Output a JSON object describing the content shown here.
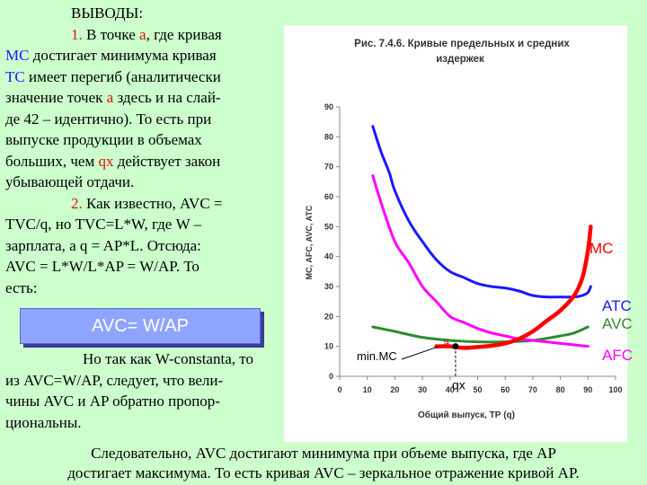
{
  "left_text": {
    "heading": "ВЫВОДЫ:",
    "p1_num": "1.",
    "p1_a": " В точке ",
    "p1_point": "а",
    "p1_b": ", где кривая",
    "p1_mc": "МС",
    "p1_c": " достигает минимума кривая",
    "p1_tc": "ТС",
    "p1_d": " имеет перегиб (аналитически",
    "p1_e": "значение точек ",
    "p1_point2": "а",
    "p1_f": " здесь и на слай-",
    "p1_g": "де 42 – идентично). То есть при",
    "p1_h": "выпуске продукции в объемах",
    "p1_i": "больших, чем ",
    "p1_q": "qx",
    "p1_j": " действует закон",
    "p1_k": "убывающей отдачи.",
    "p2_num": "2.",
    "p2_a": " Как известно, AVC =",
    "p2_b": "TVC/q, но TVC=L*W, где W –",
    "p2_c": "зарплата, а q = AP*L. Отсюда:",
    "p2_d": "AVC = L*W/L*AP = W/AP. То",
    "p2_e": "есть:"
  },
  "formula": "AVC= W/AP",
  "lower_text": {
    "l1": "Но так как W-constanta, то",
    "l2": "из AVC=W/AP, следует, что вели-",
    "l3": "чины AVC и AP обратно пропор-",
    "l4": "циональны."
  },
  "bottom_text": {
    "l1": "Следовательно, AVC достигают минимума при объеме выпуска, где AP",
    "l2": "достигает максимума. То есть кривая AVC – зеркальное отражение кривой AP."
  },
  "chart_data": {
    "type": "line",
    "title_line1": "Рис. 7.4.6. Кривые предельных и средних",
    "title_line2": "издержек",
    "xlabel": "Общий выпуск, ТР (q)",
    "ylabel": "MC, AFC, AVC, ATC",
    "xlim": [
      0,
      100
    ],
    "ylim": [
      0,
      90
    ],
    "xticks": [
      "0",
      "10",
      "20",
      "30",
      "40",
      "50",
      "60",
      "70",
      "80",
      "90",
      "100"
    ],
    "yticks": [
      "0",
      "10",
      "20",
      "30",
      "40",
      "50",
      "60",
      "70",
      "80",
      "90"
    ],
    "grid": false,
    "series": [
      {
        "name": "ATC",
        "color": "#1a1aff",
        "x": [
          12,
          15,
          18,
          20,
          25,
          30,
          35,
          40,
          45,
          50,
          55,
          60,
          65,
          70,
          75,
          80,
          85,
          88,
          90,
          91
        ],
        "y": [
          83.5,
          75,
          68,
          62,
          52,
          45,
          39,
          35,
          33,
          31,
          30,
          29.5,
          28.5,
          27,
          26.5,
          26.5,
          26.5,
          27,
          28,
          30
        ]
      },
      {
        "name": "AVC",
        "color": "#2e8b2e",
        "x": [
          12,
          20,
          30,
          40,
          50,
          60,
          70,
          80,
          85,
          90
        ],
        "y": [
          16.5,
          15,
          13,
          12,
          11.5,
          11.5,
          12,
          13.5,
          14.5,
          16.5
        ]
      },
      {
        "name": "AFC",
        "color": "#ff00ff",
        "x": [
          12,
          15,
          20,
          25,
          30,
          35,
          40,
          45,
          50,
          55,
          60,
          65,
          70,
          75,
          80,
          85,
          90
        ],
        "y": [
          67,
          58,
          45,
          38,
          30,
          25,
          20,
          18,
          16,
          14.5,
          13.5,
          12.5,
          12,
          11.5,
          11,
          10.5,
          10
        ]
      },
      {
        "name": "MC",
        "color": "#ff0000",
        "x": [
          35,
          40,
          45,
          50,
          55,
          60,
          65,
          70,
          75,
          80,
          85,
          88,
          90,
          91
        ],
        "y": [
          10,
          10,
          9.5,
          9.8,
          10.2,
          11,
          12.5,
          15,
          18.5,
          22,
          27,
          33,
          42,
          50
        ]
      }
    ],
    "annotations": {
      "mc_label": "MC",
      "atc_label": "ATC",
      "avc_label": "AVC",
      "afc_label": "AFC",
      "minmc_label": "min.MC",
      "point_label": "a",
      "qx_label": "qx",
      "point_x": 42,
      "point_y": 10
    }
  },
  "colors": {
    "background": "#ccffcc",
    "accent_red": "#e01010",
    "formula_box": "#8fa4ff"
  }
}
